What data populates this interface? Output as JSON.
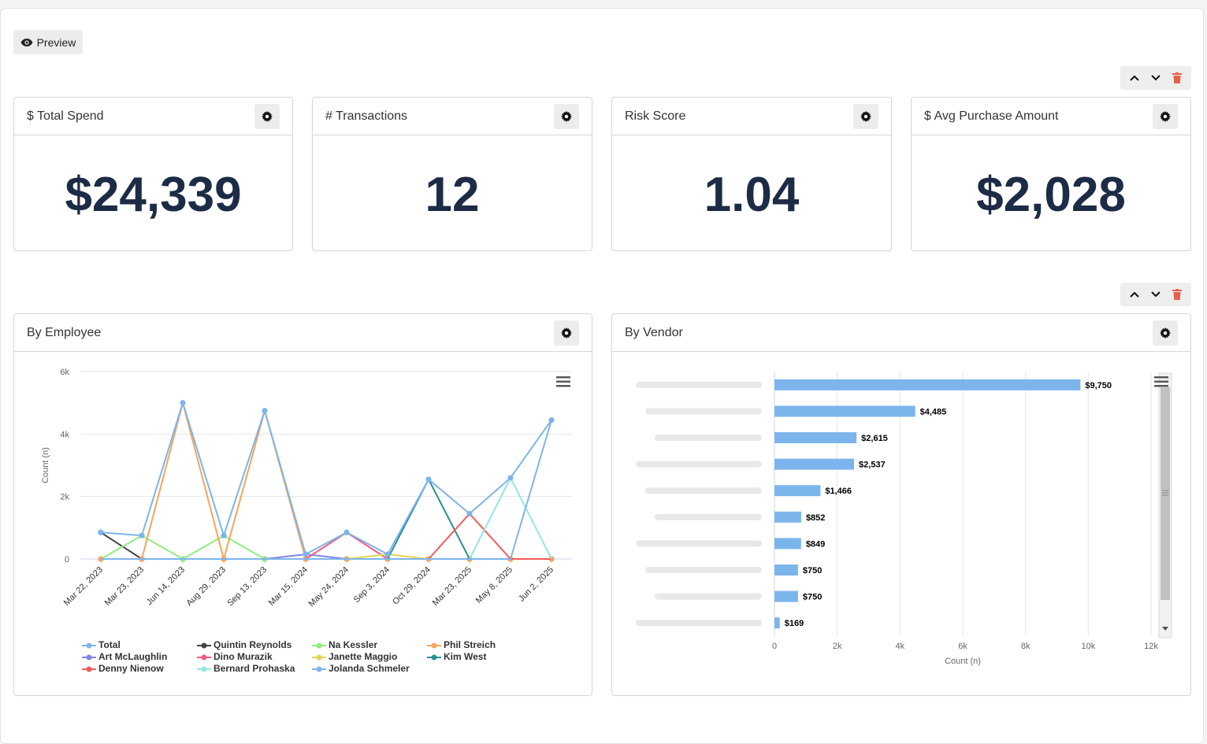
{
  "toolbar": {
    "preview_label": "Preview"
  },
  "colors": {
    "kpi_value": "#1d2c46",
    "bar": "#7cb5ec",
    "delete": "#e8604c"
  },
  "kpis": [
    {
      "title": "$ Total Spend",
      "value": "$24,339"
    },
    {
      "title": "# Transactions",
      "value": "12"
    },
    {
      "title": "Risk Score",
      "value": "1.04"
    },
    {
      "title": "$ Avg Purchase Amount",
      "value": "$2,028"
    }
  ],
  "employee_chart": {
    "title": "By Employee",
    "chart_data": {
      "type": "line",
      "ylabel": "Count (n)",
      "ylim": [
        0,
        6000
      ],
      "yticks": [
        "0",
        "2k",
        "4k",
        "6k"
      ],
      "yticks_values": [
        0,
        2000,
        4000,
        6000
      ],
      "categories": [
        "Mar 22, 2023",
        "Mar 23, 2023",
        "Jun 14, 2023",
        "Aug 29, 2023",
        "Sep 13, 2023",
        "Mar 15, 2024",
        "May 24, 2024",
        "Sep 3, 2024",
        "Oct 29, 2024",
        "Mar 23, 2025",
        "May 8, 2025",
        "Jun 2, 2025"
      ],
      "series": [
        {
          "name": "Total",
          "color": "#7cb5ec",
          "values": [
            850,
            750,
            5000,
            750,
            4750,
            150,
            850,
            150,
            2550,
            1450,
            2600,
            4450
          ]
        },
        {
          "name": "Quintin Reynolds",
          "color": "#434348",
          "values": [
            850,
            0,
            0,
            0,
            0,
            0,
            0,
            0,
            0,
            0,
            0,
            0
          ]
        },
        {
          "name": "Na Kessler",
          "color": "#90ed7d",
          "values": [
            0,
            750,
            0,
            750,
            0,
            0,
            0,
            0,
            0,
            0,
            0,
            0
          ]
        },
        {
          "name": "Phil Streich",
          "color": "#f7a35c",
          "values": [
            0,
            0,
            5000,
            0,
            4750,
            0,
            0,
            0,
            0,
            0,
            0,
            0
          ]
        },
        {
          "name": "Art McLaughlin",
          "color": "#8085e9",
          "values": [
            0,
            0,
            0,
            0,
            0,
            150,
            0,
            0,
            0,
            0,
            0,
            0
          ]
        },
        {
          "name": "Dino Murazik",
          "color": "#f15c80",
          "values": [
            0,
            0,
            0,
            0,
            0,
            0,
            850,
            0,
            0,
            0,
            0,
            0
          ]
        },
        {
          "name": "Janette Maggio",
          "color": "#e4d354",
          "values": [
            0,
            0,
            0,
            0,
            0,
            0,
            0,
            150,
            0,
            0,
            0,
            0
          ]
        },
        {
          "name": "Kim West",
          "color": "#2b908f",
          "values": [
            0,
            0,
            0,
            0,
            0,
            0,
            0,
            0,
            2550,
            0,
            0,
            0
          ]
        },
        {
          "name": "Denny Nienow",
          "color": "#f45b5b",
          "values": [
            0,
            0,
            0,
            0,
            0,
            0,
            0,
            0,
            0,
            1450,
            0,
            0
          ]
        },
        {
          "name": "Bernard Prohaska",
          "color": "#91e8e1",
          "values": [
            0,
            0,
            0,
            0,
            0,
            0,
            0,
            0,
            0,
            0,
            2600,
            0
          ]
        },
        {
          "name": "Jolanda Schmeler",
          "color": "#7cb5ec",
          "values": [
            0,
            0,
            0,
            0,
            0,
            0,
            0,
            0,
            0,
            0,
            0,
            4450
          ]
        }
      ]
    }
  },
  "vendor_chart": {
    "title": "By Vendor",
    "chart_data": {
      "type": "bar",
      "xlabel": "Count (n)",
      "xlim": [
        0,
        12000
      ],
      "xticks": [
        "0",
        "2k",
        "4k",
        "6k",
        "8k",
        "10k",
        "12k"
      ],
      "xticks_values": [
        0,
        2000,
        4000,
        6000,
        8000,
        10000,
        12000
      ],
      "values": [
        9750,
        4485,
        2615,
        2537,
        1466,
        852,
        849,
        750,
        750,
        169
      ],
      "labels": [
        "$9,750",
        "$4,485",
        "$2,615",
        "$2,537",
        "$1,466",
        "$852",
        "$849",
        "$750",
        "$750",
        "$169"
      ]
    }
  }
}
